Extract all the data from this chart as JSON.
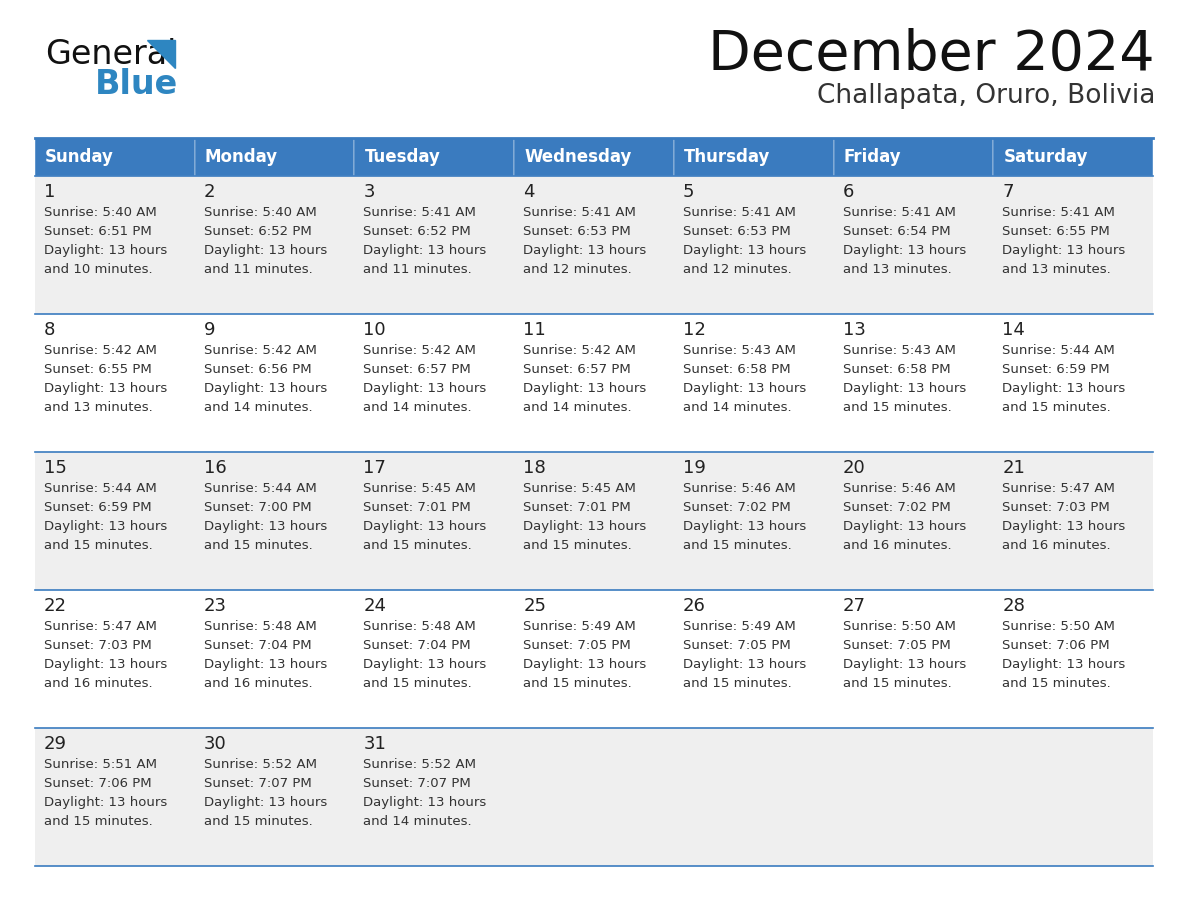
{
  "title": "December 2024",
  "subtitle": "Challapata, Oruro, Bolivia",
  "header_bg": "#3a7bbf",
  "header_text_color": "#FFFFFF",
  "day_names": [
    "Sunday",
    "Monday",
    "Tuesday",
    "Wednesday",
    "Thursday",
    "Friday",
    "Saturday"
  ],
  "row_bg_colors": [
    "#EFEFEF",
    "#FFFFFF",
    "#EFEFEF",
    "#FFFFFF",
    "#EFEFEF"
  ],
  "cell_border_color": "#3a7bbf",
  "day_num_color": "#222222",
  "content_color": "#333333",
  "title_color": "#111111",
  "subtitle_color": "#333333",
  "calendar_data": [
    [
      {
        "day": 1,
        "sunrise": "5:40 AM",
        "sunset": "6:51 PM",
        "daylight_hours": 13,
        "daylight_mins": 10
      },
      {
        "day": 2,
        "sunrise": "5:40 AM",
        "sunset": "6:52 PM",
        "daylight_hours": 13,
        "daylight_mins": 11
      },
      {
        "day": 3,
        "sunrise": "5:41 AM",
        "sunset": "6:52 PM",
        "daylight_hours": 13,
        "daylight_mins": 11
      },
      {
        "day": 4,
        "sunrise": "5:41 AM",
        "sunset": "6:53 PM",
        "daylight_hours": 13,
        "daylight_mins": 12
      },
      {
        "day": 5,
        "sunrise": "5:41 AM",
        "sunset": "6:53 PM",
        "daylight_hours": 13,
        "daylight_mins": 12
      },
      {
        "day": 6,
        "sunrise": "5:41 AM",
        "sunset": "6:54 PM",
        "daylight_hours": 13,
        "daylight_mins": 13
      },
      {
        "day": 7,
        "sunrise": "5:41 AM",
        "sunset": "6:55 PM",
        "daylight_hours": 13,
        "daylight_mins": 13
      }
    ],
    [
      {
        "day": 8,
        "sunrise": "5:42 AM",
        "sunset": "6:55 PM",
        "daylight_hours": 13,
        "daylight_mins": 13
      },
      {
        "day": 9,
        "sunrise": "5:42 AM",
        "sunset": "6:56 PM",
        "daylight_hours": 13,
        "daylight_mins": 14
      },
      {
        "day": 10,
        "sunrise": "5:42 AM",
        "sunset": "6:57 PM",
        "daylight_hours": 13,
        "daylight_mins": 14
      },
      {
        "day": 11,
        "sunrise": "5:42 AM",
        "sunset": "6:57 PM",
        "daylight_hours": 13,
        "daylight_mins": 14
      },
      {
        "day": 12,
        "sunrise": "5:43 AM",
        "sunset": "6:58 PM",
        "daylight_hours": 13,
        "daylight_mins": 14
      },
      {
        "day": 13,
        "sunrise": "5:43 AM",
        "sunset": "6:58 PM",
        "daylight_hours": 13,
        "daylight_mins": 15
      },
      {
        "day": 14,
        "sunrise": "5:44 AM",
        "sunset": "6:59 PM",
        "daylight_hours": 13,
        "daylight_mins": 15
      }
    ],
    [
      {
        "day": 15,
        "sunrise": "5:44 AM",
        "sunset": "6:59 PM",
        "daylight_hours": 13,
        "daylight_mins": 15
      },
      {
        "day": 16,
        "sunrise": "5:44 AM",
        "sunset": "7:00 PM",
        "daylight_hours": 13,
        "daylight_mins": 15
      },
      {
        "day": 17,
        "sunrise": "5:45 AM",
        "sunset": "7:01 PM",
        "daylight_hours": 13,
        "daylight_mins": 15
      },
      {
        "day": 18,
        "sunrise": "5:45 AM",
        "sunset": "7:01 PM",
        "daylight_hours": 13,
        "daylight_mins": 15
      },
      {
        "day": 19,
        "sunrise": "5:46 AM",
        "sunset": "7:02 PM",
        "daylight_hours": 13,
        "daylight_mins": 15
      },
      {
        "day": 20,
        "sunrise": "5:46 AM",
        "sunset": "7:02 PM",
        "daylight_hours": 13,
        "daylight_mins": 16
      },
      {
        "day": 21,
        "sunrise": "5:47 AM",
        "sunset": "7:03 PM",
        "daylight_hours": 13,
        "daylight_mins": 16
      }
    ],
    [
      {
        "day": 22,
        "sunrise": "5:47 AM",
        "sunset": "7:03 PM",
        "daylight_hours": 13,
        "daylight_mins": 16
      },
      {
        "day": 23,
        "sunrise": "5:48 AM",
        "sunset": "7:04 PM",
        "daylight_hours": 13,
        "daylight_mins": 16
      },
      {
        "day": 24,
        "sunrise": "5:48 AM",
        "sunset": "7:04 PM",
        "daylight_hours": 13,
        "daylight_mins": 15
      },
      {
        "day": 25,
        "sunrise": "5:49 AM",
        "sunset": "7:05 PM",
        "daylight_hours": 13,
        "daylight_mins": 15
      },
      {
        "day": 26,
        "sunrise": "5:49 AM",
        "sunset": "7:05 PM",
        "daylight_hours": 13,
        "daylight_mins": 15
      },
      {
        "day": 27,
        "sunrise": "5:50 AM",
        "sunset": "7:05 PM",
        "daylight_hours": 13,
        "daylight_mins": 15
      },
      {
        "day": 28,
        "sunrise": "5:50 AM",
        "sunset": "7:06 PM",
        "daylight_hours": 13,
        "daylight_mins": 15
      }
    ],
    [
      {
        "day": 29,
        "sunrise": "5:51 AM",
        "sunset": "7:06 PM",
        "daylight_hours": 13,
        "daylight_mins": 15
      },
      {
        "day": 30,
        "sunrise": "5:52 AM",
        "sunset": "7:07 PM",
        "daylight_hours": 13,
        "daylight_mins": 15
      },
      {
        "day": 31,
        "sunrise": "5:52 AM",
        "sunset": "7:07 PM",
        "daylight_hours": 13,
        "daylight_mins": 14
      },
      null,
      null,
      null,
      null
    ]
  ],
  "logo_text_general": "General",
  "logo_text_blue": "Blue",
  "logo_color_general": "#111111",
  "logo_color_blue": "#2E86C1"
}
